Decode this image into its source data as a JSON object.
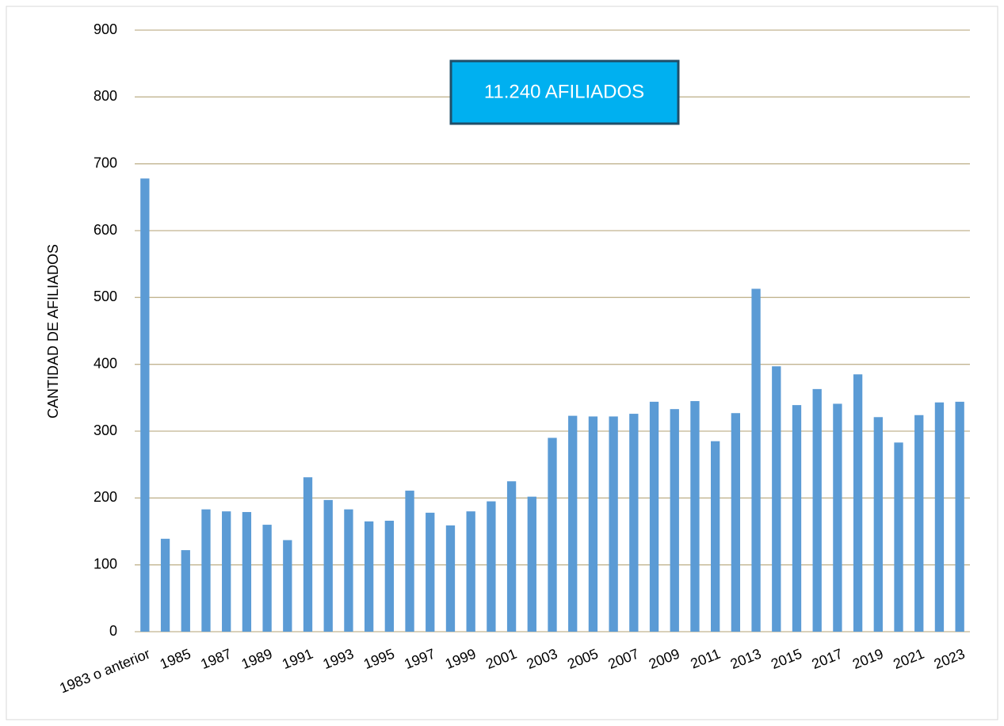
{
  "chart_data": {
    "type": "bar",
    "y_axis_label": "CANTIDAD DE AFILIADOS",
    "annotation": "11.240 AFILIADOS",
    "categories": [
      "1983 o anterior",
      null,
      "1985",
      null,
      "1987",
      null,
      "1989",
      null,
      "1991",
      null,
      "1993",
      null,
      "1995",
      null,
      "1997",
      null,
      "1999",
      null,
      "2001",
      null,
      "2003",
      null,
      "2005",
      null,
      "2007",
      null,
      "2009",
      null,
      "2011",
      null,
      "2013",
      null,
      "2015",
      null,
      "2017",
      null,
      "2019",
      null,
      "2021",
      null,
      "2023"
    ],
    "values": [
      678,
      139,
      122,
      183,
      180,
      179,
      160,
      137,
      231,
      197,
      183,
      165,
      166,
      211,
      178,
      159,
      180,
      195,
      225,
      202,
      290,
      323,
      322,
      322,
      326,
      344,
      333,
      345,
      285,
      327,
      513,
      397,
      339,
      363,
      341,
      385,
      321,
      283,
      324,
      343,
      344
    ],
    "color": "#5b9bd5",
    "ylim": [
      0,
      900
    ],
    "yticks": [
      0,
      100,
      200,
      300,
      400,
      500,
      600,
      700,
      800,
      900
    ],
    "grid": true
  }
}
